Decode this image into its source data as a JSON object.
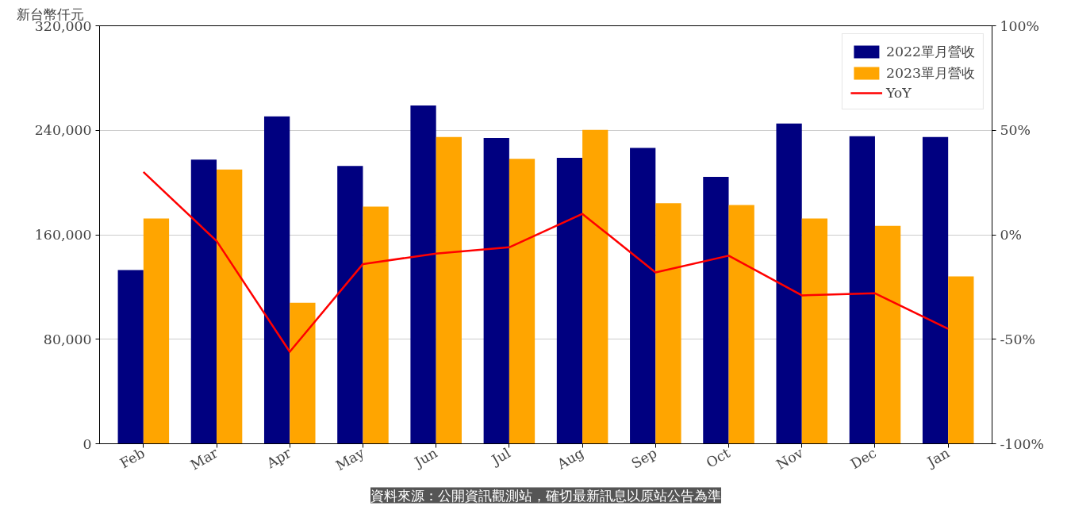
{
  "chart_data": {
    "type": "bar",
    "ylabel": "新台幣仟元",
    "categories": [
      "Feb",
      "Mar",
      "Apr",
      "May",
      "Jun",
      "Jul",
      "Aug",
      "Sep",
      "Oct",
      "Nov",
      "Dec",
      "Jan"
    ],
    "series": [
      {
        "name": "2022單月營收",
        "color": "#000080",
        "values": [
          133000,
          217500,
          250700,
          212600,
          259000,
          234100,
          218900,
          226500,
          204300,
          245200,
          235500,
          234800
        ]
      },
      {
        "name": "2023單月營收",
        "color": "#ffa500",
        "values": [
          172500,
          209900,
          108000,
          181500,
          234800,
          218200,
          240300,
          184200,
          182800,
          172500,
          166900,
          128100
        ]
      },
      {
        "name": "YoY",
        "type": "line",
        "axis": "y2",
        "color": "#ff0000",
        "values": [
          30,
          -3,
          -56,
          -14,
          -9,
          -6,
          10,
          -18,
          -10,
          -29,
          -28,
          -45
        ]
      }
    ],
    "ylim": [
      0,
      320000
    ],
    "yticks": [
      {
        "value": 0,
        "label": "0"
      },
      {
        "value": 80000,
        "label": "80,000"
      },
      {
        "value": 160000,
        "label": "160,000"
      },
      {
        "value": 240000,
        "label": "240,000"
      },
      {
        "value": 320000,
        "label": "320,000"
      }
    ],
    "y2lim": [
      -100,
      100
    ],
    "y2ticks": [
      {
        "value": -100,
        "label": "-100%"
      },
      {
        "value": -50,
        "label": "-50%"
      },
      {
        "value": 0,
        "label": "0%"
      },
      {
        "value": 50,
        "label": "50%"
      },
      {
        "value": 100,
        "label": "100%"
      }
    ],
    "grid": "y",
    "legend": "top right",
    "line_style": "solid",
    "annotations": [
      "資料來源：公開資訊觀測站，確切最新訊息以原站公告為準"
    ]
  }
}
